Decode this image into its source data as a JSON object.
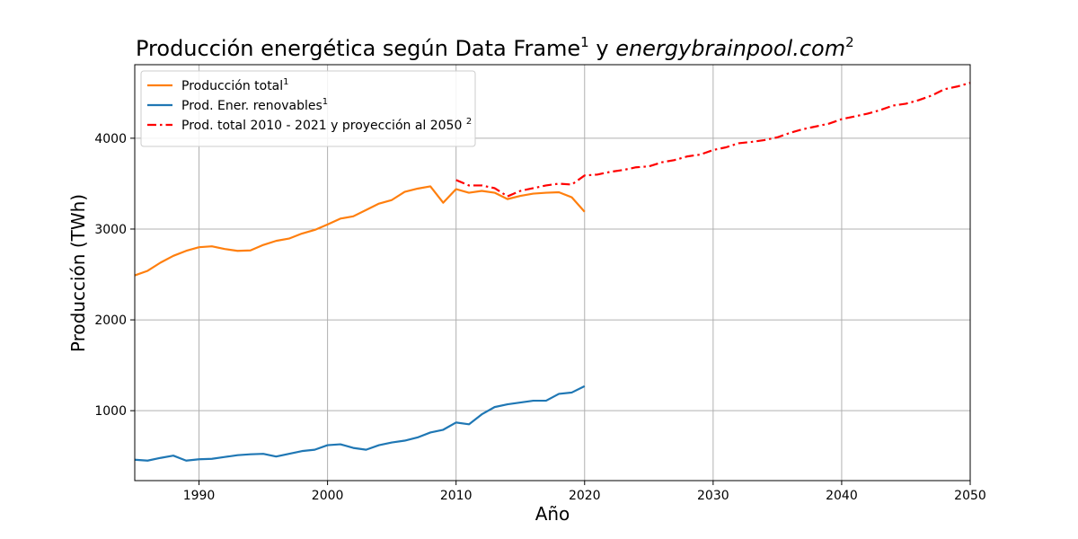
{
  "chart_data": {
    "type": "line",
    "title": {
      "part1": "Producción energética según Data Frame",
      "sup1": "1",
      "part2": " y ",
      "part3_italic": "energybrainpool.com",
      "sup2": "2"
    },
    "xlabel": "Año",
    "ylabel": "Producción (TWh)",
    "xlim": [
      1985,
      2050
    ],
    "ylim": [
      230,
      4810
    ],
    "x_ticks": [
      1990,
      2000,
      2010,
      2020,
      2030,
      2040,
      2050
    ],
    "y_ticks": [
      1000,
      2000,
      3000,
      4000
    ],
    "grid": true,
    "legend_position": "top-left",
    "series": [
      {
        "name": "Producción total",
        "name_sup": "1",
        "color": "#ff7f0e",
        "style": "solid",
        "x": [
          1985,
          1986,
          1987,
          1988,
          1989,
          1990,
          1991,
          1992,
          1993,
          1994,
          1995,
          1996,
          1997,
          1998,
          1999,
          2000,
          2001,
          2002,
          2003,
          2004,
          2005,
          2006,
          2007,
          2008,
          2009,
          2010,
          2011,
          2012,
          2013,
          2014,
          2015,
          2016,
          2017,
          2018,
          2019,
          2020
        ],
        "y": [
          2490,
          2540,
          2630,
          2705,
          2760,
          2800,
          2810,
          2780,
          2760,
          2765,
          2825,
          2870,
          2895,
          2950,
          2990,
          3050,
          3115,
          3140,
          3210,
          3280,
          3320,
          3410,
          3445,
          3470,
          3290,
          3440,
          3400,
          3420,
          3400,
          3330,
          3365,
          3390,
          3400,
          3405,
          3350,
          3190
        ]
      },
      {
        "name": "Prod. Ener. renovables",
        "name_sup": "1",
        "color": "#1f77b4",
        "style": "solid",
        "x": [
          1985,
          1986,
          1987,
          1988,
          1989,
          1990,
          1991,
          1992,
          1993,
          1994,
          1995,
          1996,
          1997,
          1998,
          1999,
          2000,
          2001,
          2002,
          2003,
          2004,
          2005,
          2006,
          2007,
          2008,
          2009,
          2010,
          2011,
          2012,
          2013,
          2014,
          2015,
          2016,
          2017,
          2018,
          2019,
          2020
        ],
        "y": [
          460,
          450,
          480,
          505,
          450,
          465,
          470,
          490,
          510,
          520,
          525,
          495,
          525,
          555,
          570,
          620,
          630,
          590,
          570,
          620,
          650,
          670,
          705,
          760,
          790,
          870,
          850,
          960,
          1040,
          1070,
          1090,
          1110,
          1110,
          1185,
          1200,
          1270
        ]
      },
      {
        "name": "Prod. total 2010 - 2021 y proyección al 2050",
        "name_sup": "2",
        "color": "#ff0000",
        "style": "dashdot",
        "x": [
          2010,
          2011,
          2012,
          2013,
          2014,
          2015,
          2016,
          2017,
          2018,
          2019,
          2020,
          2021,
          2022,
          2023,
          2024,
          2025,
          2026,
          2027,
          2028,
          2029,
          2030,
          2031,
          2032,
          2033,
          2034,
          2035,
          2036,
          2037,
          2038,
          2039,
          2040,
          2041,
          2042,
          2043,
          2044,
          2045,
          2046,
          2047,
          2048,
          2049,
          2050
        ],
        "y": [
          3540,
          3480,
          3480,
          3450,
          3360,
          3420,
          3450,
          3480,
          3500,
          3490,
          3590,
          3600,
          3630,
          3650,
          3680,
          3690,
          3735,
          3760,
          3800,
          3820,
          3870,
          3900,
          3945,
          3960,
          3980,
          4010,
          4060,
          4100,
          4130,
          4160,
          4210,
          4240,
          4270,
          4310,
          4360,
          4380,
          4420,
          4470,
          4540,
          4570,
          4610
        ]
      }
    ]
  }
}
